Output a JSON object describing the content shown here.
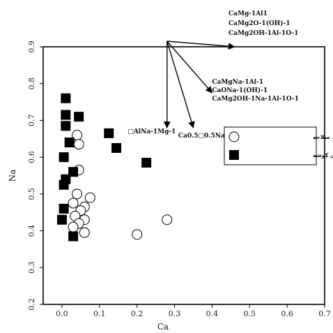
{
  "chart_data": {
    "type": "scatter",
    "title": "",
    "xlabel": "Ca",
    "ylabel": "Na",
    "xlim": [
      -0.05,
      0.7
    ],
    "ylim": [
      0.2,
      0.9
    ],
    "xticks": [
      0.0,
      0.1,
      0.2,
      0.3,
      0.4,
      0.5,
      0.6,
      0.7
    ],
    "yticks": [
      0.2,
      0.3,
      0.4,
      0.5,
      0.6,
      0.7,
      0.8,
      0.9
    ],
    "xtick_labels": [
      "0.0",
      "0.1",
      "0.2",
      "0.3",
      "0.4",
      "0.5",
      "0.6",
      "0.7"
    ],
    "ytick_labels": [
      "0.2",
      "0.3",
      "0.4",
      "0.5",
      "0.6",
      "0.7",
      "0.8",
      "0.9"
    ],
    "grid": false,
    "legend_position": "right",
    "series": [
      {
        "name": "تورمالین های منطقه زمان آباد سلاجه",
        "marker": "open-circle",
        "color": "#000000",
        "points": [
          {
            "x": 0.04,
            "y": 0.66
          },
          {
            "x": 0.045,
            "y": 0.635
          },
          {
            "x": 0.045,
            "y": 0.565
          },
          {
            "x": 0.04,
            "y": 0.5
          },
          {
            "x": 0.075,
            "y": 0.49
          },
          {
            "x": 0.03,
            "y": 0.475
          },
          {
            "x": 0.06,
            "y": 0.465
          },
          {
            "x": 0.05,
            "y": 0.455
          },
          {
            "x": 0.035,
            "y": 0.44
          },
          {
            "x": 0.06,
            "y": 0.43
          },
          {
            "x": 0.045,
            "y": 0.42
          },
          {
            "x": 0.03,
            "y": 0.41
          },
          {
            "x": 0.06,
            "y": 0.395
          },
          {
            "x": 0.2,
            "y": 0.39
          },
          {
            "x": 0.28,
            "y": 0.43
          }
        ]
      },
      {
        "name": "تورمالین های کوشه",
        "marker": "filled-square",
        "color": "#000000",
        "points": [
          {
            "x": 0.01,
            "y": 0.76
          },
          {
            "x": 0.01,
            "y": 0.715
          },
          {
            "x": 0.045,
            "y": 0.71
          },
          {
            "x": 0.01,
            "y": 0.685
          },
          {
            "x": 0.125,
            "y": 0.665
          },
          {
            "x": 0.02,
            "y": 0.64
          },
          {
            "x": 0.145,
            "y": 0.625
          },
          {
            "x": 0.005,
            "y": 0.6
          },
          {
            "x": 0.225,
            "y": 0.585
          },
          {
            "x": 0.03,
            "y": 0.56
          },
          {
            "x": 0.01,
            "y": 0.54
          },
          {
            "x": 0.005,
            "y": 0.525
          },
          {
            "x": 0.005,
            "y": 0.46
          },
          {
            "x": 0.0,
            "y": 0.43
          },
          {
            "x": 0.03,
            "y": 0.385
          }
        ]
      }
    ],
    "vectors": {
      "origin": {
        "x": 0.28,
        "y": 0.9
      },
      "origin_labels": [
        "CaMg-1Al1",
        "CaMg2O-1(OH)-1",
        "CaMg2OH-1Al-1O-1"
      ],
      "arrows": [
        {
          "to": {
            "x": 0.28,
            "y": 0.68
          },
          "labels": [
            "Ca0.5□0.5Na-1"
          ],
          "label_anchor": {
            "x": 0.31,
            "y": 0.665
          }
        },
        {
          "to": {
            "x": 0.35,
            "y": 0.68
          },
          "labels": [
            "CaMgNa-1Al-1",
            "CaONa-1(OH)-1",
            "CaMg2OH-1Na-1Al-1O-1"
          ],
          "label_anchor": {
            "x": 0.4,
            "y": 0.765
          }
        },
        {
          "to": {
            "x": 0.4,
            "y": 0.775
          },
          "labels": [],
          "label_anchor": null
        },
        {
          "to": {
            "x": 0.46,
            "y": 0.9
          },
          "labels": [],
          "label_anchor": null
        }
      ]
    },
    "annotations": [
      {
        "text": "□AlNa-1Mg-1",
        "x": 0.175,
        "y": 0.665
      }
    ]
  }
}
